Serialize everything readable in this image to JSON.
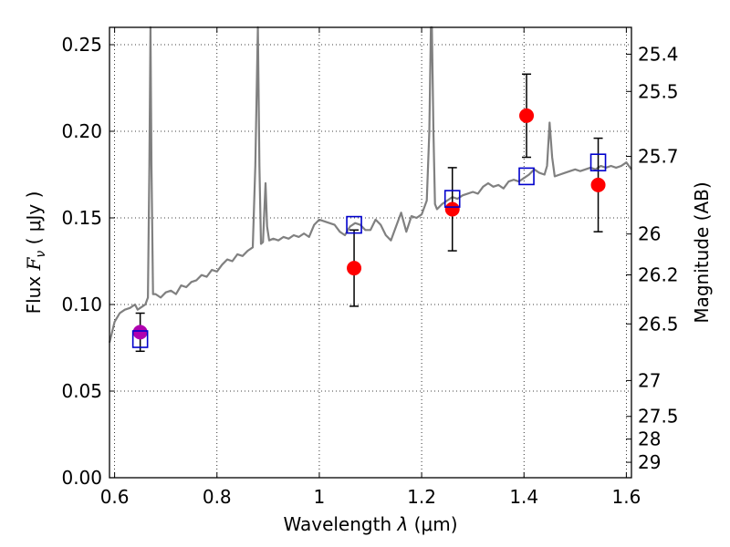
{
  "chart_data": {
    "type": "line",
    "xlim": [
      0.59,
      1.61
    ],
    "ylim": [
      0.0,
      0.26
    ],
    "grid": true,
    "x_ticks": [
      0.6,
      0.8,
      1.0,
      1.2,
      1.4,
      1.6
    ],
    "x_tick_labels": [
      "0.6",
      "0.8",
      "1",
      "1.2",
      "1.4",
      "1.6"
    ],
    "y_ticks": [
      0.0,
      0.05,
      0.1,
      0.15,
      0.2,
      0.25
    ],
    "y_tick_labels": [
      "0.00",
      "0.05",
      "0.10",
      "0.15",
      "0.20",
      "0.25"
    ],
    "xlabel": {
      "prefix": "Wavelength ",
      "symbol": "λ",
      "unit": " (μm)"
    },
    "ylabel": {
      "prefix": "Flux ",
      "symbol": "F",
      "subscript": "ν",
      "unit": " ( μJy )"
    },
    "y2label": "Magnitude (AB)",
    "y2_ticks": [
      {
        "label": "25.4",
        "flux": 0.2445
      },
      {
        "label": "25.5",
        "flux": 0.223
      },
      {
        "label": "25.7",
        "flux": 0.1855
      },
      {
        "label": "26",
        "flux": 0.1407
      },
      {
        "label": "26.2",
        "flux": 0.1171
      },
      {
        "label": "26.5",
        "flux": 0.0888
      },
      {
        "label": "27",
        "flux": 0.0561
      },
      {
        "label": "27.5",
        "flux": 0.0354
      },
      {
        "label": "28",
        "flux": 0.0223
      },
      {
        "label": "29",
        "flux": 0.0089
      }
    ],
    "spectrum": {
      "color": "#808080",
      "x": [
        0.59,
        0.6,
        0.61,
        0.62,
        0.63,
        0.64,
        0.645,
        0.65,
        0.66,
        0.665,
        0.668,
        0.67,
        0.672,
        0.675,
        0.68,
        0.69,
        0.7,
        0.71,
        0.72,
        0.73,
        0.74,
        0.75,
        0.76,
        0.77,
        0.78,
        0.79,
        0.8,
        0.81,
        0.82,
        0.83,
        0.84,
        0.85,
        0.86,
        0.87,
        0.875,
        0.88,
        0.883,
        0.886,
        0.89,
        0.895,
        0.898,
        0.902,
        0.91,
        0.92,
        0.93,
        0.94,
        0.95,
        0.96,
        0.97,
        0.98,
        0.99,
        1.0,
        1.01,
        1.02,
        1.03,
        1.04,
        1.05,
        1.06,
        1.07,
        1.08,
        1.09,
        1.1,
        1.11,
        1.12,
        1.13,
        1.14,
        1.15,
        1.16,
        1.17,
        1.18,
        1.19,
        1.2,
        1.21,
        1.215,
        1.218,
        1.22,
        1.223,
        1.226,
        1.23,
        1.24,
        1.25,
        1.26,
        1.27,
        1.28,
        1.29,
        1.3,
        1.31,
        1.32,
        1.33,
        1.34,
        1.35,
        1.36,
        1.37,
        1.38,
        1.39,
        1.4,
        1.41,
        1.42,
        1.43,
        1.44,
        1.445,
        1.45,
        1.455,
        1.46,
        1.47,
        1.48,
        1.49,
        1.5,
        1.51,
        1.52,
        1.53,
        1.54,
        1.55,
        1.56,
        1.57,
        1.58,
        1.59,
        1.6,
        1.605,
        1.61
      ],
      "y": [
        0.078,
        0.09,
        0.095,
        0.097,
        0.098,
        0.1,
        0.097,
        0.098,
        0.1,
        0.104,
        0.18,
        0.26,
        0.18,
        0.106,
        0.106,
        0.104,
        0.107,
        0.108,
        0.106,
        0.111,
        0.11,
        0.113,
        0.114,
        0.117,
        0.116,
        0.12,
        0.119,
        0.123,
        0.126,
        0.125,
        0.129,
        0.128,
        0.131,
        0.133,
        0.18,
        0.26,
        0.18,
        0.135,
        0.136,
        0.17,
        0.145,
        0.137,
        0.138,
        0.137,
        0.139,
        0.138,
        0.14,
        0.139,
        0.141,
        0.139,
        0.146,
        0.149,
        0.148,
        0.147,
        0.146,
        0.142,
        0.14,
        0.145,
        0.147,
        0.146,
        0.143,
        0.143,
        0.149,
        0.146,
        0.14,
        0.137,
        0.145,
        0.153,
        0.142,
        0.151,
        0.15,
        0.152,
        0.16,
        0.2,
        0.26,
        0.26,
        0.2,
        0.158,
        0.155,
        0.158,
        0.16,
        0.162,
        0.161,
        0.163,
        0.164,
        0.165,
        0.164,
        0.168,
        0.17,
        0.168,
        0.169,
        0.167,
        0.171,
        0.172,
        0.171,
        0.173,
        0.175,
        0.178,
        0.176,
        0.175,
        0.18,
        0.205,
        0.185,
        0.174,
        0.175,
        0.176,
        0.177,
        0.178,
        0.177,
        0.178,
        0.179,
        0.178,
        0.18,
        0.179,
        0.18,
        0.179,
        0.18,
        0.182,
        0.18,
        0.178
      ]
    },
    "series": [
      {
        "marker": "filled-circle",
        "color": "#ff0000",
        "x": [
          1.068,
          1.26,
          1.405,
          1.545
        ],
        "y": [
          0.121,
          0.155,
          0.209,
          0.169
        ],
        "err": [
          0.022,
          0.024,
          0.024,
          0.027
        ]
      },
      {
        "marker": "filled-circle",
        "color": "#b000b0",
        "x": [
          0.65
        ],
        "y": [
          0.084
        ],
        "err": [
          0.011
        ]
      },
      {
        "marker": "open-square",
        "color": "#0000cc",
        "x": [
          0.65,
          1.068,
          1.26,
          1.405,
          1.545
        ],
        "y": [
          0.08,
          0.146,
          0.161,
          0.174,
          0.182
        ]
      }
    ]
  }
}
